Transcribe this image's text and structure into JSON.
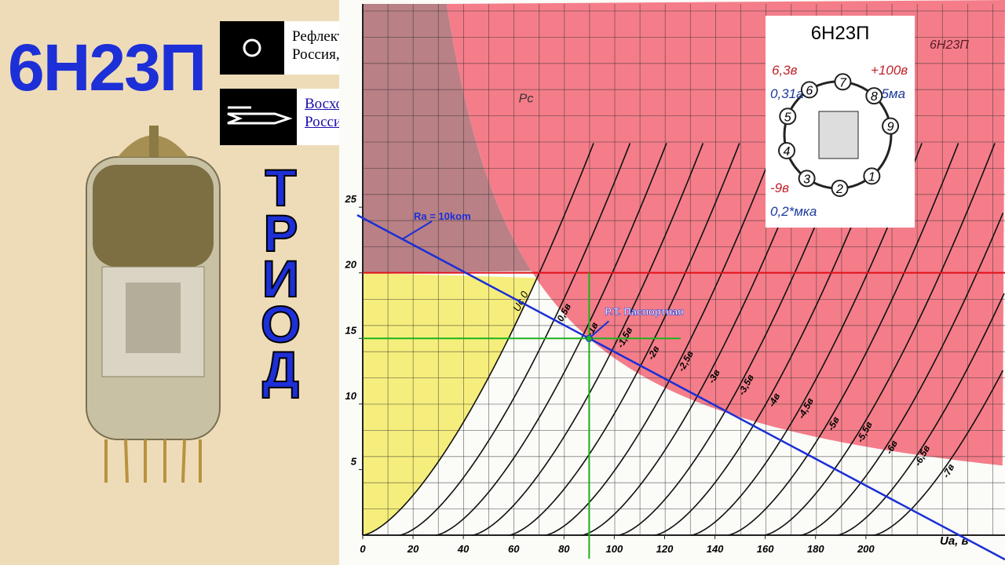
{
  "title": "6Н23П",
  "kind": "ТРИОД",
  "makers": [
    {
      "name": "Рефлектор",
      "place": "Россия, Саратов"
    },
    {
      "name": "Восход",
      "place": "Россия, Калуга"
    }
  ],
  "chart": {
    "xlim": [
      0,
      245
    ],
    "ylim": [
      0,
      40.5
    ],
    "xticks": [
      0,
      20,
      40,
      60,
      80,
      100,
      120,
      140,
      160,
      180,
      200
    ],
    "yticks": [
      5,
      10,
      15,
      20,
      25
    ],
    "x_label": "Ua, в",
    "corner_title": "6Н23П",
    "pc_label": "Pc",
    "uc0_label": "Uc 0",
    "curve_labels": [
      "-0,5в",
      "-1в",
      "-1,5в",
      "-2в",
      "-2,5в",
      "-3в",
      "-3,5в",
      "-4в",
      "-4,5в",
      "-5в",
      "-5,5в",
      "-6в",
      "-6,5в",
      "-7в"
    ],
    "load_line_label": "Ra = 10kom",
    "operating_point": {
      "label": "Р.Т. Паспортная",
      "ua": 90,
      "ia": 15
    },
    "max_current_line": 20
  },
  "pinout": {
    "title": "6Н23П",
    "heater": "6,3в",
    "heater_current": "0,31а",
    "anode": "+100в",
    "anode_current": "15ма",
    "grid": "-9в",
    "grid_current": "0,2*мка",
    "pins": [
      "1",
      "2",
      "3",
      "4",
      "5",
      "6",
      "7",
      "8",
      "9"
    ]
  }
}
